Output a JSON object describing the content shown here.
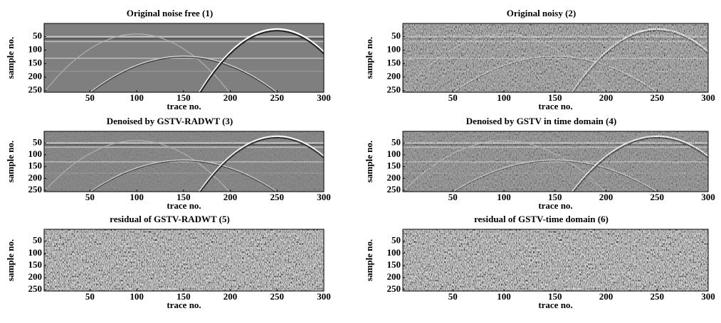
{
  "panels": [
    {
      "title": "Original noise free (1)",
      "xlabel": "trace no.",
      "ylabel": "sample no.",
      "xlim": [
        1,
        300
      ],
      "ylim": [
        1,
        256
      ],
      "xticks": [
        50,
        100,
        150,
        200,
        250,
        300
      ],
      "yticks": [
        50,
        100,
        150,
        200,
        250
      ]
    },
    {
      "title": "Original noisy (2)",
      "xlabel": "trace no.",
      "ylabel": "sample no.",
      "xlim": [
        1,
        300
      ],
      "ylim": [
        1,
        256
      ],
      "xticks": [
        50,
        100,
        150,
        200,
        250,
        300
      ],
      "yticks": [
        50,
        100,
        150,
        200,
        250
      ]
    },
    {
      "title": "Denoised by GSTV-RADWT (3)",
      "xlabel": "trace no.",
      "ylabel": "sample no.",
      "xlim": [
        1,
        300
      ],
      "ylim": [
        1,
        256
      ],
      "xticks": [
        50,
        100,
        150,
        200,
        250,
        300
      ],
      "yticks": [
        50,
        100,
        150,
        200,
        250
      ]
    },
    {
      "title": "Denoised by GSTV in time domain (4)",
      "xlabel": "trace no.",
      "ylabel": "sample no.",
      "xlim": [
        1,
        300
      ],
      "ylim": [
        1,
        256
      ],
      "xticks": [
        50,
        100,
        150,
        200,
        250,
        300
      ],
      "yticks": [
        50,
        100,
        150,
        200,
        250
      ]
    },
    {
      "title": "residual of  GSTV-RADWT (5)",
      "xlabel": "trace no.",
      "ylabel": "sample no.",
      "xlim": [
        1,
        300
      ],
      "ylim": [
        1,
        256
      ],
      "xticks": [
        50,
        100,
        150,
        200,
        250,
        300
      ],
      "yticks": [
        50,
        100,
        150,
        200,
        250
      ]
    },
    {
      "title": "residual of  GSTV-time domain (6)",
      "xlabel": "trace no.",
      "ylabel": "sample no.",
      "xlim": [
        1,
        300
      ],
      "ylim": [
        1,
        256
      ],
      "xticks": [
        50,
        100,
        150,
        200,
        250,
        300
      ],
      "yticks": [
        50,
        100,
        150,
        200,
        250
      ]
    }
  ]
}
